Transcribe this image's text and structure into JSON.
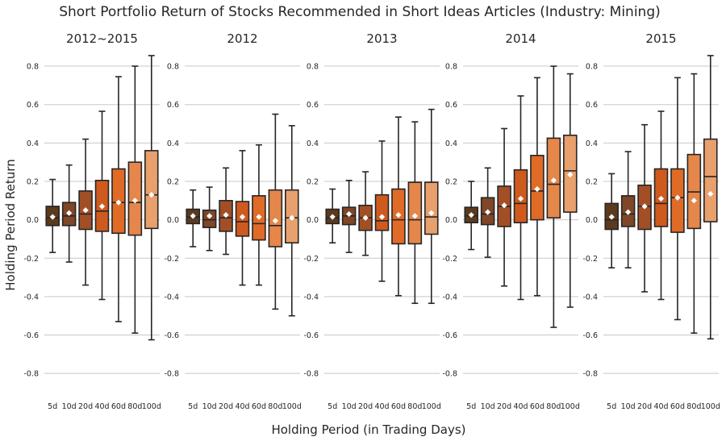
{
  "suptitle": "Short Portfolio Return of Stocks Recommended in Short Ideas Articles (Industry: Mining)",
  "ylabel": "Holding Period Return",
  "xlabel": "Holding Period (in Trading Days)",
  "colors": [
    "#5c3a1e",
    "#7f4627",
    "#a34f26",
    "#cf5a1e",
    "#e06b27",
    "#e5864a",
    "#e8a06c"
  ],
  "chart_data": [
    {
      "type": "box",
      "title": "2012~2015",
      "categories": [
        "5d",
        "10d",
        "20d",
        "40d",
        "60d",
        "80d",
        "100d"
      ],
      "ylim": [
        -0.9,
        0.88
      ],
      "yticks": [
        -0.8,
        -0.6,
        -0.4,
        -0.2,
        0.0,
        0.2,
        0.4,
        0.6,
        0.8
      ],
      "boxes": [
        {
          "whislo": -0.17,
          "q1": -0.03,
          "med": 0.01,
          "q3": 0.07,
          "whishi": 0.21,
          "mean": 0.015
        },
        {
          "whislo": -0.22,
          "q1": -0.03,
          "med": 0.02,
          "q3": 0.09,
          "whishi": 0.285,
          "mean": 0.035
        },
        {
          "whislo": -0.34,
          "q1": -0.05,
          "med": 0.03,
          "q3": 0.15,
          "whishi": 0.42,
          "mean": 0.05
        },
        {
          "whislo": -0.415,
          "q1": -0.06,
          "med": 0.045,
          "q3": 0.205,
          "whishi": 0.565,
          "mean": 0.07
        },
        {
          "whislo": -0.53,
          "q1": -0.07,
          "med": 0.09,
          "q3": 0.265,
          "whishi": 0.745,
          "mean": 0.09
        },
        {
          "whislo": -0.59,
          "q1": -0.08,
          "med": 0.09,
          "q3": 0.3,
          "whishi": 0.8,
          "mean": 0.1
        },
        {
          "whislo": -0.625,
          "q1": -0.045,
          "med": 0.13,
          "q3": 0.36,
          "whishi": 0.855,
          "mean": 0.13
        }
      ]
    },
    {
      "type": "box",
      "title": "2012",
      "categories": [
        "5d",
        "10d",
        "20d",
        "40d",
        "60d",
        "80d",
        "100d"
      ],
      "ylim": [
        -0.9,
        0.88
      ],
      "yticks": [
        -0.8,
        -0.6,
        -0.4,
        -0.2,
        0.0,
        0.2,
        0.4,
        0.6,
        0.8
      ],
      "boxes": [
        {
          "whislo": -0.14,
          "q1": -0.02,
          "med": 0.015,
          "q3": 0.055,
          "whishi": 0.155,
          "mean": 0.02
        },
        {
          "whislo": -0.16,
          "q1": -0.04,
          "med": 0.0,
          "q3": 0.05,
          "whishi": 0.17,
          "mean": 0.02
        },
        {
          "whislo": -0.18,
          "q1": -0.06,
          "med": 0.01,
          "q3": 0.1,
          "whishi": 0.27,
          "mean": 0.025
        },
        {
          "whislo": -0.34,
          "q1": -0.085,
          "med": -0.01,
          "q3": 0.095,
          "whishi": 0.36,
          "mean": 0.015
        },
        {
          "whislo": -0.34,
          "q1": -0.105,
          "med": -0.02,
          "q3": 0.125,
          "whishi": 0.39,
          "mean": 0.015
        },
        {
          "whislo": -0.465,
          "q1": -0.14,
          "med": -0.03,
          "q3": 0.155,
          "whishi": 0.55,
          "mean": -0.005
        },
        {
          "whislo": -0.5,
          "q1": -0.12,
          "med": 0.01,
          "q3": 0.155,
          "whishi": 0.49,
          "mean": 0.01
        }
      ]
    },
    {
      "type": "box",
      "title": "2013",
      "categories": [
        "5d",
        "10d",
        "20d",
        "40d",
        "60d",
        "80d",
        "100d"
      ],
      "ylim": [
        -0.9,
        0.88
      ],
      "yticks": [
        -0.8,
        -0.6,
        -0.4,
        -0.2,
        0.0,
        0.2,
        0.4,
        0.6,
        0.8
      ],
      "boxes": [
        {
          "whislo": -0.12,
          "q1": -0.02,
          "med": 0.01,
          "q3": 0.055,
          "whishi": 0.16,
          "mean": 0.015
        },
        {
          "whislo": -0.17,
          "q1": -0.025,
          "med": 0.02,
          "q3": 0.065,
          "whishi": 0.205,
          "mean": 0.03
        },
        {
          "whislo": -0.185,
          "q1": -0.055,
          "med": 0.01,
          "q3": 0.075,
          "whishi": 0.25,
          "mean": 0.01
        },
        {
          "whislo": -0.32,
          "q1": -0.055,
          "med": -0.005,
          "q3": 0.13,
          "whishi": 0.41,
          "mean": 0.015
        },
        {
          "whislo": -0.395,
          "q1": -0.125,
          "med": 0.0,
          "q3": 0.16,
          "whishi": 0.535,
          "mean": 0.025
        },
        {
          "whislo": -0.435,
          "q1": -0.125,
          "med": 0.0,
          "q3": 0.195,
          "whishi": 0.51,
          "mean": 0.02
        },
        {
          "whislo": -0.435,
          "q1": -0.075,
          "med": 0.015,
          "q3": 0.195,
          "whishi": 0.575,
          "mean": 0.035
        }
      ]
    },
    {
      "type": "box",
      "title": "2014",
      "categories": [
        "5d",
        "10d",
        "20d",
        "40d",
        "60d",
        "80d",
        "100d"
      ],
      "ylim": [
        -0.9,
        0.88
      ],
      "yticks": [
        -0.8,
        -0.6,
        -0.4,
        -0.2,
        0.0,
        0.2,
        0.4,
        0.6,
        0.8
      ],
      "boxes": [
        {
          "whislo": -0.155,
          "q1": -0.015,
          "med": 0.02,
          "q3": 0.065,
          "whishi": 0.2,
          "mean": 0.025
        },
        {
          "whislo": -0.195,
          "q1": -0.025,
          "med": 0.03,
          "q3": 0.115,
          "whishi": 0.27,
          "mean": 0.04
        },
        {
          "whislo": -0.345,
          "q1": -0.035,
          "med": 0.07,
          "q3": 0.175,
          "whishi": 0.475,
          "mean": 0.075
        },
        {
          "whislo": -0.415,
          "q1": -0.015,
          "med": 0.085,
          "q3": 0.26,
          "whishi": 0.645,
          "mean": 0.11
        },
        {
          "whislo": -0.395,
          "q1": 0.0,
          "med": 0.15,
          "q3": 0.335,
          "whishi": 0.74,
          "mean": 0.16
        },
        {
          "whislo": -0.56,
          "q1": 0.01,
          "med": 0.185,
          "q3": 0.425,
          "whishi": 0.8,
          "mean": 0.205
        },
        {
          "whislo": -0.455,
          "q1": 0.04,
          "med": 0.255,
          "q3": 0.44,
          "whishi": 0.76,
          "mean": 0.235
        }
      ]
    },
    {
      "type": "box",
      "title": "2015",
      "categories": [
        "5d",
        "10d",
        "20d",
        "40d",
        "60d",
        "80d",
        "100d"
      ],
      "ylim": [
        -0.9,
        0.88
      ],
      "yticks": [
        -0.8,
        -0.6,
        -0.4,
        -0.2,
        0.0,
        0.2,
        0.4,
        0.6,
        0.8
      ],
      "boxes": [
        {
          "whislo": -0.25,
          "q1": -0.05,
          "med": 0.0,
          "q3": 0.085,
          "whishi": 0.24,
          "mean": 0.015
        },
        {
          "whislo": -0.25,
          "q1": -0.035,
          "med": 0.03,
          "q3": 0.125,
          "whishi": 0.355,
          "mean": 0.04
        },
        {
          "whislo": -0.375,
          "q1": -0.05,
          "med": 0.07,
          "q3": 0.18,
          "whishi": 0.495,
          "mean": 0.07
        },
        {
          "whislo": -0.415,
          "q1": -0.035,
          "med": 0.085,
          "q3": 0.265,
          "whishi": 0.565,
          "mean": 0.11
        },
        {
          "whislo": -0.52,
          "q1": -0.065,
          "med": 0.115,
          "q3": 0.265,
          "whishi": 0.74,
          "mean": 0.115
        },
        {
          "whislo": -0.59,
          "q1": -0.045,
          "med": 0.145,
          "q3": 0.34,
          "whishi": 0.76,
          "mean": 0.1
        },
        {
          "whislo": -0.62,
          "q1": -0.01,
          "med": 0.225,
          "q3": 0.42,
          "whishi": 0.855,
          "mean": 0.135
        }
      ]
    }
  ]
}
